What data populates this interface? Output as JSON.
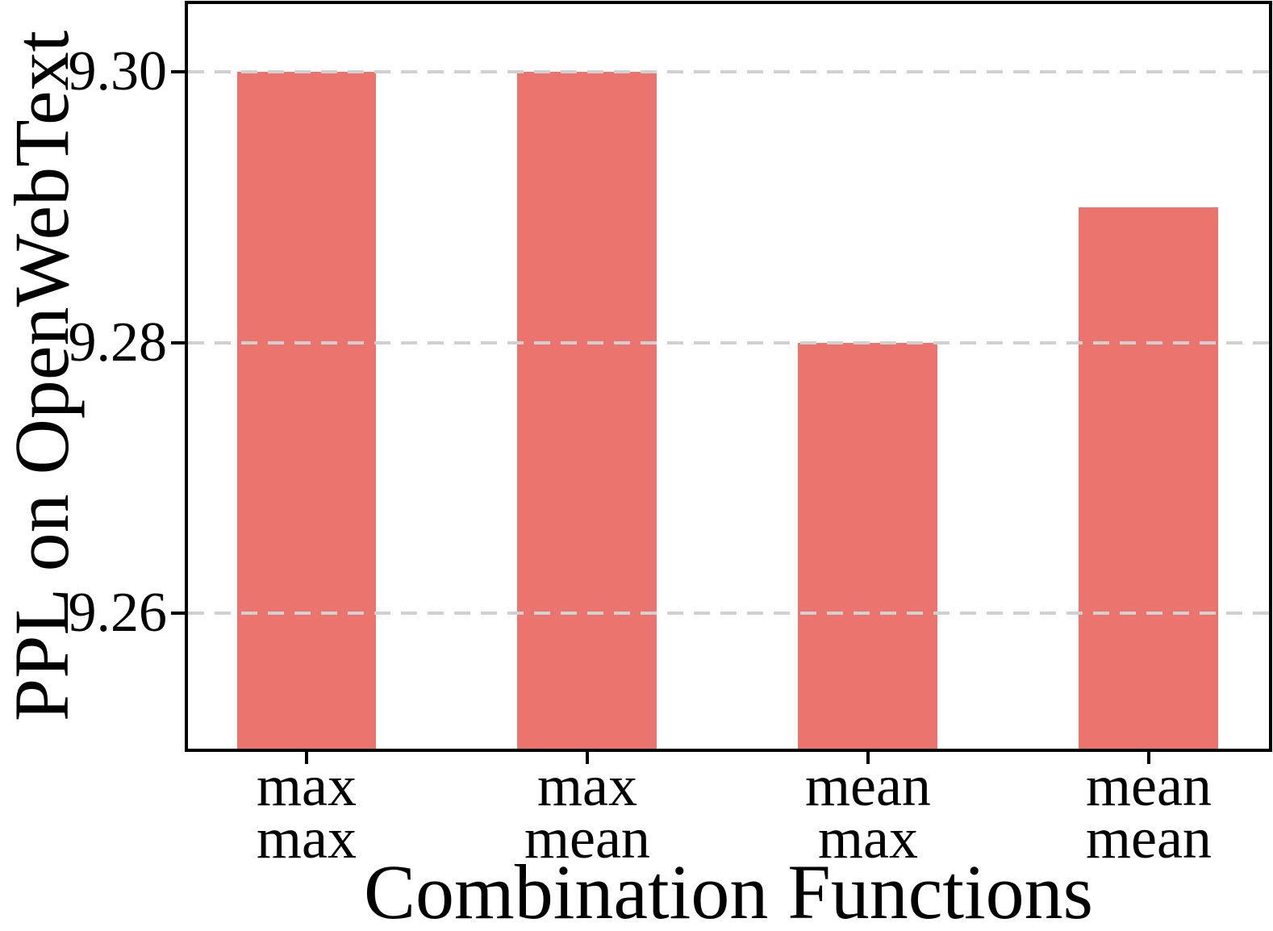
{
  "chart_data": {
    "type": "bar",
    "title": "",
    "xlabel": "Combination Functions",
    "ylabel": "PPL on OpenWebText",
    "categories": [
      "max\nmax",
      "max\nmean",
      "mean\nmax",
      "mean\nmean"
    ],
    "category_lines": [
      [
        "max",
        "max"
      ],
      [
        "max",
        "mean"
      ],
      [
        "mean",
        "max"
      ],
      [
        "mean",
        "mean"
      ]
    ],
    "values": [
      9.3,
      9.3,
      9.28,
      9.29
    ],
    "ylim": [
      9.25,
      9.305
    ],
    "yticks": [
      9.26,
      9.28,
      9.3
    ],
    "ytick_labels": [
      "9.26",
      "9.28",
      "9.30"
    ],
    "legend": "none",
    "grid": "horizontal dashed gridlines at yticks, drawn above bars",
    "bar_color": "#eb746f",
    "grid_color": "#d0d0d0",
    "spine_color": "#000000",
    "text_color": "#000000",
    "layout": {
      "x_tick_centers_pct": [
        10.97,
        36.94,
        62.91,
        88.88
      ],
      "bar_width_pct": 12.91,
      "frame": "full box"
    }
  }
}
